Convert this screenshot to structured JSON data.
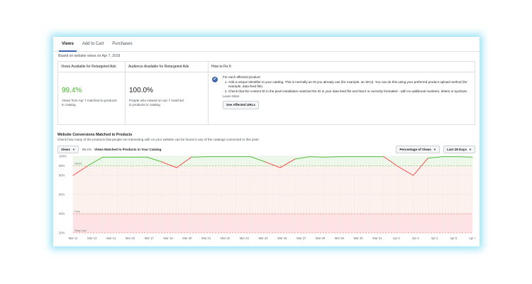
{
  "tabs": [
    "Views",
    "Add to Cart",
    "Purchases"
  ],
  "subtitle": "Based on website views on Apr 7, 2019",
  "table": {
    "col1": {
      "header": "Views Available for Retargeted Ads",
      "value": "99.4%",
      "desc": "Views from Apr 7 matched to products in catalog"
    },
    "col2": {
      "header": "Audience Available for Retargeted Ads",
      "value": "100.0%",
      "desc": "People who viewed on Apr 7 matched to products in catalog"
    },
    "col3": {
      "header": "How to Fix It",
      "intro": "For each affected product:",
      "step1": "Add a unique identifier to your catalog. This is normally an ID you already use (for example, an SKU). You can do this using your preferred product upload method (for example, data feed file).",
      "step2": "Check that the content ID in the pixel installation matched the ID in your data feed file and that it is correctly formatted - with no additional numbers, letters or symbols.",
      "learn_more": "Learn More",
      "button": "See Affected URLs"
    }
  },
  "section": {
    "title": "Website Conversions Matched to Products",
    "desc": "Check how many of the products that people are interacting with on your website can be found in any of the catalogs connected to this pixel."
  },
  "controls": {
    "metric_dropdown": "Views",
    "percent": "99.4%",
    "percent_label": "Views Matched to Products in Your Catalog",
    "mode_dropdown": "Percentage of Views",
    "range_dropdown": "Last 28 Days"
  },
  "colors": {
    "good": "#42b72a",
    "bad": "#fa3e3e",
    "accent": "#4267b2"
  },
  "chart_data": {
    "type": "line",
    "x": [
      "Mar 11",
      "Mar 12",
      "Mar 13",
      "Mar 14",
      "Mar 15",
      "Mar 16",
      "Mar 17",
      "Mar 18",
      "Mar 19",
      "Mar 20",
      "Mar 21",
      "Mar 22",
      "Mar 23",
      "Mar 24",
      "Mar 25",
      "Mar 26",
      "Mar 27",
      "Mar 28",
      "Mar 29",
      "Mar 30",
      "Mar 31",
      "Apr 1",
      "Apr 2",
      "Apr 3",
      "Apr 4",
      "Apr 5",
      "Apr 6",
      "Apr 7"
    ],
    "xticks": [
      "Mar 11",
      "Mar 13",
      "Mar 14",
      "Mar 16",
      "Mar 17",
      "Mar 19",
      "Mar 20",
      "Mar 21",
      "Mar 22",
      "Mar 23",
      "Mar 24",
      "Mar 26",
      "Mar 27",
      "Mar 28",
      "Mar 29",
      "Mar 30",
      "Mar 31",
      "Apr 2",
      "Apr 3",
      "Apr 4",
      "Apr 5",
      "Apr 7"
    ],
    "values": [
      80,
      90,
      99,
      99,
      99,
      99,
      94,
      88,
      99,
      99.5,
      99.5,
      99.5,
      99.5,
      94,
      88,
      97,
      99.5,
      99,
      99.5,
      99.5,
      99.5,
      99.5,
      89,
      80,
      98,
      99.5,
      99.5,
      99
    ],
    "yticks": [
      "100%",
      "90%",
      "80%",
      "60%",
      "40%",
      "20%"
    ],
    "ylim": [
      20,
      100
    ],
    "thresholds": [
      {
        "label": "Good",
        "value": 90
      },
      {
        "label": "Low",
        "value": 40
      },
      {
        "label": "Very Low",
        "value": 20
      }
    ]
  }
}
